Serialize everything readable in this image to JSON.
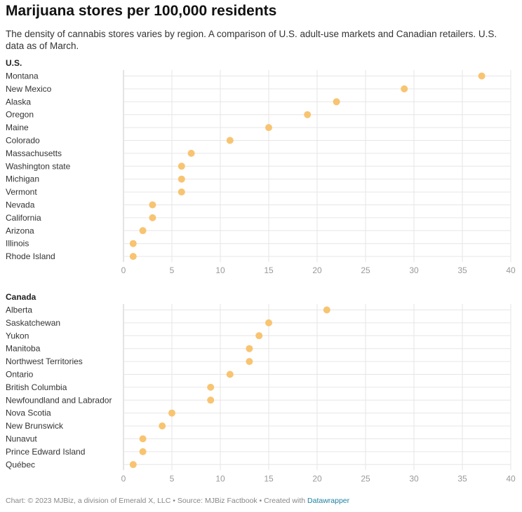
{
  "title": "Marijuana stores per 100,000 residents",
  "subtitle": "The density of cannabis stores varies by region. A comparison of U.S. adult-use markets and Canadian retailers. U.S. data as of March.",
  "footer": {
    "credit": "Chart: © 2023 MJBiz, a division of Emerald X, LLC • Source: MJBiz Factbook • Created with ",
    "tool": "Datawrapper"
  },
  "colors": {
    "dot": "#f8c471",
    "grid": "#e6e6e6",
    "axis": "#c8c8c8",
    "tick": "#999999"
  },
  "chart_data": [
    {
      "type": "scatter",
      "title": "U.S.",
      "categories": [
        "Montana",
        "New Mexico",
        "Alaska",
        "Oregon",
        "Maine",
        "Colorado",
        "Massachusetts",
        "Washington state",
        "Michigan",
        "Vermont",
        "Nevada",
        "California",
        "Arizona",
        "Illinois",
        "Rhode Island"
      ],
      "values": [
        37,
        29,
        22,
        19,
        15,
        11,
        7,
        6,
        6,
        6,
        3,
        3,
        2,
        1,
        1
      ],
      "xlim": [
        0,
        40
      ],
      "xticks": [
        0,
        5,
        10,
        15,
        20,
        25,
        30,
        35,
        40
      ],
      "grid": true
    },
    {
      "type": "scatter",
      "title": "Canada",
      "categories": [
        "Alberta",
        "Saskatchewan",
        "Yukon",
        "Manitoba",
        "Northwest Territories",
        "Ontario",
        "British Columbia",
        "Newfoundland and Labrador",
        "Nova Scotia",
        "New Brunswick",
        "Nunavut",
        "Prince Edward Island",
        "Québec"
      ],
      "values": [
        21,
        15,
        14,
        13,
        13,
        11,
        9,
        9,
        5,
        4,
        2,
        2,
        1
      ],
      "xlim": [
        0,
        40
      ],
      "xticks": [
        0,
        5,
        10,
        15,
        20,
        25,
        30,
        35,
        40
      ],
      "grid": true
    }
  ]
}
